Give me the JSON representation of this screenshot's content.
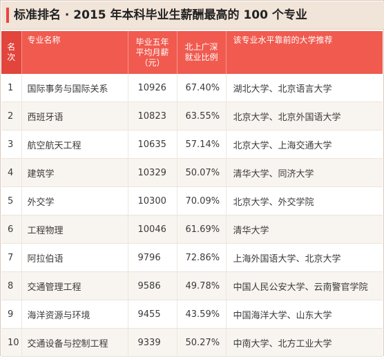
{
  "title": "标准排名 · 2015 年本科毕业生薪酬最高的 100 个专业",
  "colors": {
    "header_bg": "#f05a4f",
    "accent": "#e8463f",
    "title_bg": "#f1e4d8"
  },
  "columns": {
    "rank": [
      "名",
      "次"
    ],
    "name": "专业名称",
    "salary": [
      "毕业五年",
      "平均月薪",
      "（元）"
    ],
    "ratio": [
      "北上广深",
      "就业比例"
    ],
    "unis": "该专业水平靠前的大学推荐"
  },
  "rows": [
    {
      "rank": "1",
      "name": "国际事务与国际关系",
      "salary": "10926",
      "ratio": "67.40%",
      "unis": "湖北大学、北京语言大学"
    },
    {
      "rank": "2",
      "name": "西班牙语",
      "salary": "10823",
      "ratio": "63.55%",
      "unis": "北京大学、北京外国语大学"
    },
    {
      "rank": "3",
      "name": "航空航天工程",
      "salary": "10635",
      "ratio": "57.14%",
      "unis": "北京大学、上海交通大学"
    },
    {
      "rank": "4",
      "name": "建筑学",
      "salary": "10329",
      "ratio": "50.07%",
      "unis": "清华大学、同济大学"
    },
    {
      "rank": "5",
      "name": "外交学",
      "salary": "10300",
      "ratio": "70.09%",
      "unis": "北京大学、外交学院"
    },
    {
      "rank": "6",
      "name": "工程物理",
      "salary": "10046",
      "ratio": "61.69%",
      "unis": "清华大学"
    },
    {
      "rank": "7",
      "name": "阿拉伯语",
      "salary": "9796",
      "ratio": "72.86%",
      "unis": "上海外国语大学、北京大学"
    },
    {
      "rank": "8",
      "name": "交通管理工程",
      "salary": "9586",
      "ratio": "49.78%",
      "unis": "中国人民公安大学、云南警官学院"
    },
    {
      "rank": "9",
      "name": "海洋资源与环境",
      "salary": "9455",
      "ratio": "43.59%",
      "unis": "中国海洋大学、山东大学"
    },
    {
      "rank": "10",
      "name": "交通设备与控制工程",
      "salary": "9339",
      "ratio": "50.27%",
      "unis": "中南大学、北方工业大学"
    }
  ]
}
